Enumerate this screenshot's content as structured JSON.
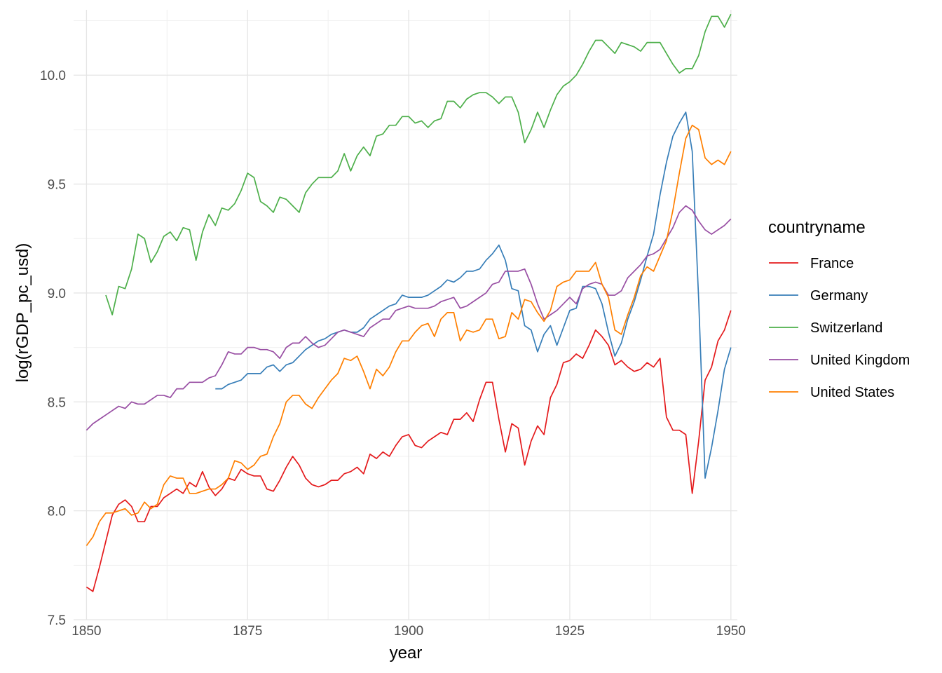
{
  "chart_data": {
    "type": "line",
    "title": "",
    "xlabel": "year",
    "ylabel": "log(rGDP_pc_usd)",
    "xlim": [
      1848,
      1951
    ],
    "ylim": [
      7.5,
      10.3
    ],
    "xticks": [
      1850,
      1875,
      1900,
      1925,
      1950
    ],
    "yticks": [
      7.5,
      8.0,
      8.5,
      9.0,
      9.5,
      10.0
    ],
    "ytick_labels": [
      "7.5",
      "8.0",
      "8.5",
      "9.0",
      "9.5",
      "10.0"
    ],
    "grid": true,
    "legend": {
      "title": "countryname",
      "placement": "right"
    },
    "series": [
      {
        "name": "France",
        "color": "#E41A1C",
        "x": [
          1850,
          1851,
          1852,
          1853,
          1854,
          1855,
          1856,
          1857,
          1858,
          1859,
          1860,
          1861,
          1862,
          1863,
          1864,
          1865,
          1866,
          1867,
          1868,
          1869,
          1870,
          1871,
          1872,
          1873,
          1874,
          1875,
          1876,
          1877,
          1878,
          1879,
          1880,
          1881,
          1882,
          1883,
          1884,
          1885,
          1886,
          1887,
          1888,
          1889,
          1890,
          1891,
          1892,
          1893,
          1894,
          1895,
          1896,
          1897,
          1898,
          1899,
          1900,
          1901,
          1902,
          1903,
          1904,
          1905,
          1906,
          1907,
          1908,
          1909,
          1910,
          1911,
          1912,
          1913,
          1914,
          1915,
          1916,
          1917,
          1918,
          1919,
          1920,
          1921,
          1922,
          1923,
          1924,
          1925,
          1926,
          1927,
          1928,
          1929,
          1930,
          1931,
          1932,
          1933,
          1934,
          1935,
          1936,
          1937,
          1938,
          1939,
          1940,
          1941,
          1942,
          1943,
          1944,
          1945,
          1946,
          1947,
          1948,
          1949,
          1950
        ],
        "y": [
          7.65,
          7.63,
          7.74,
          7.86,
          7.98,
          8.03,
          8.05,
          8.02,
          7.95,
          7.95,
          8.02,
          8.02,
          8.06,
          8.08,
          8.1,
          8.08,
          8.13,
          8.11,
          8.18,
          8.11,
          8.07,
          8.1,
          8.15,
          8.14,
          8.19,
          8.17,
          8.16,
          8.16,
          8.1,
          8.09,
          8.14,
          8.2,
          8.25,
          8.21,
          8.15,
          8.12,
          8.11,
          8.12,
          8.14,
          8.14,
          8.17,
          8.18,
          8.2,
          8.17,
          8.26,
          8.24,
          8.27,
          8.25,
          8.3,
          8.34,
          8.35,
          8.3,
          8.29,
          8.32,
          8.34,
          8.36,
          8.35,
          8.42,
          8.42,
          8.45,
          8.41,
          8.51,
          8.59,
          8.59,
          8.42,
          8.27,
          8.4,
          8.38,
          8.21,
          8.32,
          8.39,
          8.35,
          8.52,
          8.58,
          8.68,
          8.69,
          8.72,
          8.7,
          8.76,
          8.83,
          8.8,
          8.76,
          8.67,
          8.69,
          8.66,
          8.64,
          8.65,
          8.68,
          8.66,
          8.7,
          8.43,
          8.37,
          8.37,
          8.35,
          8.08,
          8.32,
          8.6,
          8.66,
          8.78,
          8.83,
          8.92
        ]
      },
      {
        "name": "Germany",
        "color": "#377EB8",
        "x": [
          1870,
          1871,
          1872,
          1873,
          1874,
          1875,
          1876,
          1877,
          1878,
          1879,
          1880,
          1881,
          1882,
          1883,
          1884,
          1885,
          1886,
          1887,
          1888,
          1889,
          1890,
          1891,
          1892,
          1893,
          1894,
          1895,
          1896,
          1897,
          1898,
          1899,
          1900,
          1901,
          1902,
          1903,
          1904,
          1905,
          1906,
          1907,
          1908,
          1909,
          1910,
          1911,
          1912,
          1913,
          1914,
          1915,
          1916,
          1917,
          1918,
          1919,
          1920,
          1921,
          1922,
          1923,
          1924,
          1925,
          1926,
          1927,
          1928,
          1929,
          1930,
          1931,
          1932,
          1933,
          1934,
          1935,
          1936,
          1937,
          1938,
          1939,
          1940,
          1941,
          1942,
          1943,
          1944,
          1945,
          1946,
          1947,
          1948,
          1949,
          1950
        ],
        "y": [
          8.56,
          8.56,
          8.58,
          8.59,
          8.6,
          8.63,
          8.63,
          8.63,
          8.66,
          8.67,
          8.64,
          8.67,
          8.68,
          8.71,
          8.74,
          8.76,
          8.78,
          8.79,
          8.81,
          8.82,
          8.83,
          8.82,
          8.82,
          8.84,
          8.88,
          8.9,
          8.92,
          8.94,
          8.95,
          8.99,
          8.98,
          8.98,
          8.98,
          8.99,
          9.01,
          9.03,
          9.06,
          9.05,
          9.07,
          9.1,
          9.1,
          9.11,
          9.15,
          9.18,
          9.22,
          9.15,
          9.02,
          9.01,
          8.85,
          8.83,
          8.73,
          8.81,
          8.85,
          8.76,
          8.84,
          8.92,
          8.93,
          9.03,
          9.03,
          9.02,
          8.95,
          8.82,
          8.71,
          8.77,
          8.88,
          8.96,
          9.06,
          9.17,
          9.27,
          9.45,
          9.6,
          9.72,
          9.78,
          9.83,
          9.65,
          8.97,
          8.15,
          8.29,
          8.46,
          8.65,
          8.75
        ]
      },
      {
        "name": "Switzerland",
        "color": "#4DAF4A",
        "x": [
          1853,
          1854,
          1855,
          1856,
          1857,
          1858,
          1859,
          1860,
          1861,
          1862,
          1863,
          1864,
          1865,
          1866,
          1867,
          1868,
          1869,
          1870,
          1871,
          1872,
          1873,
          1874,
          1875,
          1876,
          1877,
          1878,
          1879,
          1880,
          1881,
          1882,
          1883,
          1884,
          1885,
          1886,
          1887,
          1888,
          1889,
          1890,
          1891,
          1892,
          1893,
          1894,
          1895,
          1896,
          1897,
          1898,
          1899,
          1900,
          1901,
          1902,
          1903,
          1904,
          1905,
          1906,
          1907,
          1908,
          1909,
          1910,
          1911,
          1912,
          1913,
          1914,
          1915,
          1916,
          1917,
          1918,
          1919,
          1920,
          1921,
          1922,
          1923,
          1924,
          1925,
          1926,
          1927,
          1928,
          1929,
          1930,
          1931,
          1932,
          1933,
          1934,
          1935,
          1936,
          1937,
          1938,
          1939,
          1940,
          1941,
          1942,
          1943,
          1944,
          1945,
          1946,
          1947,
          1948,
          1949,
          1950
        ],
        "y": [
          8.99,
          8.9,
          9.03,
          9.02,
          9.11,
          9.27,
          9.25,
          9.14,
          9.19,
          9.26,
          9.28,
          9.24,
          9.3,
          9.29,
          9.15,
          9.28,
          9.36,
          9.31,
          9.39,
          9.38,
          9.41,
          9.47,
          9.55,
          9.53,
          9.42,
          9.4,
          9.37,
          9.44,
          9.43,
          9.4,
          9.37,
          9.46,
          9.5,
          9.53,
          9.53,
          9.53,
          9.56,
          9.64,
          9.56,
          9.63,
          9.67,
          9.63,
          9.72,
          9.73,
          9.77,
          9.77,
          9.81,
          9.81,
          9.78,
          9.79,
          9.76,
          9.79,
          9.8,
          9.88,
          9.88,
          9.85,
          9.89,
          9.91,
          9.92,
          9.92,
          9.9,
          9.87,
          9.9,
          9.9,
          9.83,
          9.69,
          9.75,
          9.83,
          9.76,
          9.84,
          9.91,
          9.95,
          9.97,
          10.0,
          10.05,
          10.11,
          10.16,
          10.16,
          10.13,
          10.1,
          10.15,
          10.14,
          10.13,
          10.11,
          10.15,
          10.15,
          10.15,
          10.1,
          10.05,
          10.01,
          10.03,
          10.03,
          10.09,
          10.2,
          10.27,
          10.27,
          10.22,
          10.28
        ]
      },
      {
        "name": "United Kingdom",
        "color": "#984EA3",
        "x": [
          1850,
          1851,
          1852,
          1853,
          1854,
          1855,
          1856,
          1857,
          1858,
          1859,
          1860,
          1861,
          1862,
          1863,
          1864,
          1865,
          1866,
          1867,
          1868,
          1869,
          1870,
          1871,
          1872,
          1873,
          1874,
          1875,
          1876,
          1877,
          1878,
          1879,
          1880,
          1881,
          1882,
          1883,
          1884,
          1885,
          1886,
          1887,
          1888,
          1889,
          1890,
          1891,
          1892,
          1893,
          1894,
          1895,
          1896,
          1897,
          1898,
          1899,
          1900,
          1901,
          1902,
          1903,
          1904,
          1905,
          1906,
          1907,
          1908,
          1909,
          1910,
          1911,
          1912,
          1913,
          1914,
          1915,
          1916,
          1917,
          1918,
          1919,
          1920,
          1921,
          1922,
          1923,
          1924,
          1925,
          1926,
          1927,
          1928,
          1929,
          1930,
          1931,
          1932,
          1933,
          1934,
          1935,
          1936,
          1937,
          1938,
          1939,
          1940,
          1941,
          1942,
          1943,
          1944,
          1945,
          1946,
          1947,
          1948,
          1949,
          1950
        ],
        "y": [
          8.37,
          8.4,
          8.42,
          8.44,
          8.46,
          8.48,
          8.47,
          8.5,
          8.49,
          8.49,
          8.51,
          8.53,
          8.53,
          8.52,
          8.56,
          8.56,
          8.59,
          8.59,
          8.59,
          8.61,
          8.62,
          8.67,
          8.73,
          8.72,
          8.72,
          8.75,
          8.75,
          8.74,
          8.74,
          8.73,
          8.7,
          8.75,
          8.77,
          8.77,
          8.8,
          8.77,
          8.75,
          8.76,
          8.79,
          8.82,
          8.83,
          8.82,
          8.81,
          8.8,
          8.84,
          8.86,
          8.88,
          8.88,
          8.92,
          8.93,
          8.94,
          8.93,
          8.93,
          8.93,
          8.94,
          8.96,
          8.97,
          8.98,
          8.93,
          8.94,
          8.96,
          8.98,
          9.0,
          9.04,
          9.05,
          9.1,
          9.1,
          9.1,
          9.11,
          9.04,
          8.95,
          8.88,
          8.9,
          8.92,
          8.95,
          8.98,
          8.95,
          9.02,
          9.04,
          9.05,
          9.04,
          8.99,
          8.99,
          9.01,
          9.07,
          9.1,
          9.13,
          9.17,
          9.18,
          9.2,
          9.25,
          9.3,
          9.37,
          9.4,
          9.38,
          9.33,
          9.29,
          9.27,
          9.29,
          9.31,
          9.34
        ]
      },
      {
        "name": "United States",
        "color": "#FF7F00",
        "x": [
          1850,
          1851,
          1852,
          1853,
          1854,
          1855,
          1856,
          1857,
          1858,
          1859,
          1860,
          1861,
          1862,
          1863,
          1864,
          1865,
          1866,
          1867,
          1868,
          1869,
          1870,
          1871,
          1872,
          1873,
          1874,
          1875,
          1876,
          1877,
          1878,
          1879,
          1880,
          1881,
          1882,
          1883,
          1884,
          1885,
          1886,
          1887,
          1888,
          1889,
          1890,
          1891,
          1892,
          1893,
          1894,
          1895,
          1896,
          1897,
          1898,
          1899,
          1900,
          1901,
          1902,
          1903,
          1904,
          1905,
          1906,
          1907,
          1908,
          1909,
          1910,
          1911,
          1912,
          1913,
          1914,
          1915,
          1916,
          1917,
          1918,
          1919,
          1920,
          1921,
          1922,
          1923,
          1924,
          1925,
          1926,
          1927,
          1928,
          1929,
          1930,
          1931,
          1932,
          1933,
          1934,
          1935,
          1936,
          1937,
          1938,
          1939,
          1940,
          1941,
          1942,
          1943,
          1944,
          1945,
          1946,
          1947,
          1948,
          1949,
          1950
        ],
        "y": [
          7.84,
          7.88,
          7.95,
          7.99,
          7.99,
          8.0,
          8.01,
          7.98,
          7.99,
          8.04,
          8.01,
          8.03,
          8.12,
          8.16,
          8.15,
          8.15,
          8.08,
          8.08,
          8.09,
          8.1,
          8.1,
          8.12,
          8.15,
          8.23,
          8.22,
          8.19,
          8.21,
          8.25,
          8.26,
          8.34,
          8.4,
          8.5,
          8.53,
          8.53,
          8.49,
          8.47,
          8.52,
          8.56,
          8.6,
          8.63,
          8.7,
          8.69,
          8.71,
          8.64,
          8.56,
          8.65,
          8.62,
          8.66,
          8.73,
          8.78,
          8.78,
          8.82,
          8.85,
          8.86,
          8.8,
          8.88,
          8.91,
          8.91,
          8.78,
          8.83,
          8.82,
          8.83,
          8.88,
          8.88,
          8.79,
          8.8,
          8.91,
          8.88,
          8.97,
          8.96,
          8.91,
          8.87,
          8.92,
          9.03,
          9.05,
          9.06,
          9.1,
          9.1,
          9.1,
          9.14,
          9.04,
          8.98,
          8.83,
          8.81,
          8.9,
          8.98,
          9.08,
          9.12,
          9.1,
          9.17,
          9.24,
          9.38,
          9.55,
          9.71,
          9.77,
          9.75,
          9.62,
          9.59,
          9.61,
          9.59,
          9.65
        ]
      }
    ]
  }
}
